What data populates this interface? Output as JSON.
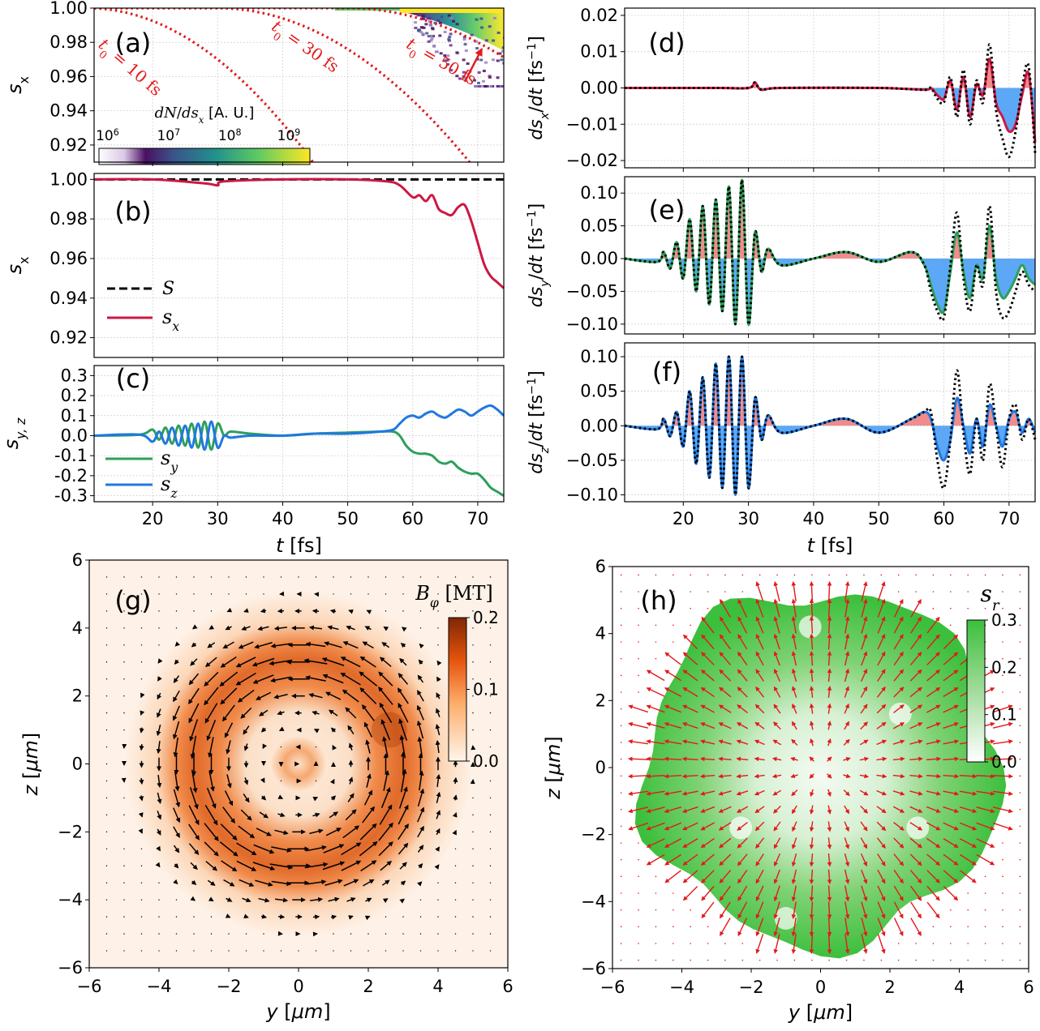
{
  "chart_data": [
    {
      "id": "a",
      "type": "heatmap",
      "panel_label": "(a)",
      "ylabel": "s_x",
      "xlim": [
        11,
        74
      ],
      "ylim": [
        0.91,
        1.0
      ],
      "yticks": [
        0.92,
        0.94,
        0.96,
        0.98,
        1.0
      ],
      "colorbar": {
        "label": "dN/ds_x [A. U.]",
        "ticks": [
          "10^6",
          "10^7",
          "10^8",
          "10^9"
        ],
        "colormap": "viridis"
      },
      "annotations": [
        {
          "label": "t_0 = 10 fs",
          "t0": 10,
          "text_at": [
            16,
            0.963
          ]
        },
        {
          "label": "t_0 = 30 fs",
          "t0": 30,
          "text_at": [
            43,
            0.975
          ]
        },
        {
          "label": "t_0 = 50 fs",
          "t0": 50,
          "text_at": [
            64,
            0.966
          ]
        }
      ],
      "curves_note": "dotted red lines s = cos^2-type decay 1 - ((t - t0)/A)^2"
    },
    {
      "id": "b",
      "type": "line",
      "panel_label": "(b)",
      "ylabel": "s_x",
      "xlim": [
        11,
        74
      ],
      "ylim": [
        0.91,
        1.003
      ],
      "yticks": [
        0.92,
        0.94,
        0.96,
        0.98,
        1.0
      ],
      "series": [
        {
          "name": "S",
          "style": "dashed",
          "color": "#000000",
          "x": [
            11,
            74
          ],
          "y": [
            1.0,
            1.0
          ]
        },
        {
          "name": "s_x",
          "color": "#cc1844",
          "x": [
            11,
            20,
            28,
            30,
            31,
            40,
            50,
            56,
            58,
            60,
            61,
            62,
            63,
            64,
            65,
            66,
            67,
            68,
            69,
            70,
            71,
            72,
            73,
            74
          ],
          "y": [
            1.0,
            1.0,
            0.998,
            0.997,
            0.999,
            1.0,
            1.0,
            0.999,
            0.997,
            0.991,
            0.992,
            0.989,
            0.992,
            0.985,
            0.983,
            0.982,
            0.986,
            0.987,
            0.979,
            0.968,
            0.957,
            0.951,
            0.948,
            0.945
          ]
        }
      ],
      "legend": "lower-left"
    },
    {
      "id": "c",
      "type": "line",
      "panel_label": "(c)",
      "ylabel": "s_y,z",
      "xlabel": "t [fs]",
      "xlim": [
        11,
        74
      ],
      "ylim": [
        -0.33,
        0.35
      ],
      "yticks": [
        -0.3,
        -0.2,
        -0.1,
        0.0,
        0.1,
        0.2,
        0.3
      ],
      "xticks": [
        20,
        30,
        40,
        50,
        60,
        70
      ],
      "series": [
        {
          "name": "s_y",
          "color": "#2ca05a",
          "x": [
            11,
            18,
            20,
            21,
            22,
            23,
            24,
            25,
            26,
            27,
            28,
            29,
            30,
            31,
            32,
            35,
            40,
            45,
            50,
            55,
            57,
            58,
            59,
            60,
            61,
            62,
            63,
            64,
            65,
            66,
            67,
            68,
            69,
            70,
            71,
            72,
            73,
            74
          ],
          "y": [
            0.0,
            0.005,
            0.03,
            -0.02,
            0.04,
            -0.04,
            0.05,
            -0.05,
            0.06,
            -0.06,
            0.07,
            -0.07,
            0.06,
            0.0,
            0.02,
            0.01,
            0.0,
            0.01,
            0.015,
            0.02,
            0.02,
            0.0,
            -0.05,
            -0.08,
            -0.09,
            -0.09,
            -0.1,
            -0.13,
            -0.14,
            -0.13,
            -0.16,
            -0.18,
            -0.19,
            -0.19,
            -0.22,
            -0.26,
            -0.28,
            -0.3
          ]
        },
        {
          "name": "s_z",
          "color": "#1f78e0",
          "x": [
            11,
            18,
            20,
            21,
            22,
            23,
            24,
            25,
            26,
            27,
            28,
            29,
            30,
            31,
            32,
            35,
            40,
            45,
            50,
            55,
            57,
            58,
            59,
            60,
            61,
            62,
            63,
            64,
            65,
            66,
            67,
            68,
            69,
            70,
            71,
            72,
            73,
            74
          ],
          "y": [
            0.0,
            0.005,
            -0.03,
            0.02,
            -0.04,
            0.04,
            -0.05,
            0.05,
            -0.06,
            0.06,
            -0.07,
            0.07,
            -0.06,
            0.0,
            -0.01,
            0.0,
            0.0,
            0.01,
            0.01,
            0.02,
            0.03,
            0.06,
            0.09,
            0.1,
            0.09,
            0.11,
            0.12,
            0.1,
            0.09,
            0.11,
            0.13,
            0.12,
            0.1,
            0.12,
            0.14,
            0.15,
            0.13,
            0.1
          ]
        }
      ],
      "legend": "lower-left"
    },
    {
      "id": "d",
      "type": "line",
      "panel_label": "(d)",
      "ylabel": "ds_x/dt [fs^-1]",
      "xlim": [
        11,
        74
      ],
      "ylim": [
        -0.022,
        0.022
      ],
      "yticks": [
        -0.02,
        -0.01,
        0.0,
        0.01,
        0.02
      ],
      "series": [
        {
          "name": "ds_x/dt (solid)",
          "color": "#cc1844",
          "fill_pos": "#f08080",
          "fill_neg": "#4a9ff5",
          "x": [
            11,
            25,
            30,
            31,
            32,
            35,
            50,
            57,
            58,
            59,
            60,
            61,
            62,
            63,
            64,
            65,
            66,
            67,
            68,
            69,
            70,
            71,
            72,
            73,
            74
          ],
          "y": [
            0.0,
            0.0,
            0.0,
            0.0015,
            -0.0005,
            0.0,
            0.0,
            -0.0005,
            0.0,
            -0.002,
            -0.003,
            0.002,
            -0.006,
            0.003,
            -0.008,
            0.001,
            -0.002,
            0.008,
            -0.004,
            -0.008,
            -0.012,
            -0.01,
            -0.002,
            0.004,
            -0.015
          ]
        },
        {
          "name": "model (dotted)",
          "color": "#000000",
          "style": "dotted",
          "x": [
            11,
            25,
            30,
            31,
            32,
            35,
            50,
            57,
            58,
            59,
            60,
            61,
            62,
            63,
            64,
            65,
            66,
            67,
            68,
            69,
            70,
            71,
            72,
            73,
            74
          ],
          "y": [
            0.0,
            0.0,
            0.0,
            0.0015,
            -0.0005,
            0.0,
            0.0,
            -0.0005,
            0.0,
            -0.003,
            -0.004,
            0.003,
            -0.008,
            0.005,
            -0.01,
            0.002,
            -0.004,
            0.012,
            -0.006,
            -0.014,
            -0.019,
            -0.012,
            0.0,
            0.006,
            -0.018
          ]
        }
      ]
    },
    {
      "id": "e",
      "type": "line",
      "panel_label": "(e)",
      "ylabel": "ds_y/dt [fs^-1]",
      "xlim": [
        11,
        74
      ],
      "ylim": [
        -0.115,
        0.125
      ],
      "yticks": [
        -0.1,
        -0.05,
        0.0,
        0.05,
        0.1
      ],
      "series": [
        {
          "name": "ds_y/dt (solid)",
          "color": "#2ca05a",
          "fill_pos": "#f08080",
          "fill_neg": "#4a9ff5",
          "x": [
            11,
            16,
            17,
            18,
            19,
            20,
            21,
            22,
            23,
            24,
            25,
            26,
            27,
            28,
            29,
            30,
            31,
            32,
            33,
            35,
            40,
            45,
            50,
            55,
            57,
            58,
            59,
            60,
            61,
            62,
            63,
            64,
            65,
            66,
            67,
            68,
            69,
            70,
            71,
            72,
            73,
            74
          ],
          "y": [
            0.0,
            -0.005,
            0.01,
            -0.015,
            0.025,
            -0.03,
            0.06,
            -0.05,
            0.08,
            -0.07,
            0.09,
            -0.08,
            0.11,
            -0.1,
            0.12,
            -0.1,
            0.04,
            -0.02,
            0.015,
            -0.01,
            0.0,
            0.01,
            -0.005,
            0.01,
            -0.01,
            -0.04,
            -0.07,
            -0.08,
            -0.02,
            0.04,
            -0.02,
            -0.06,
            -0.01,
            -0.03,
            0.05,
            -0.03,
            -0.06,
            -0.05,
            -0.03,
            -0.01,
            -0.03,
            -0.04
          ]
        },
        {
          "name": "model (dotted)",
          "color": "#000000",
          "style": "dotted",
          "x": [
            11,
            16,
            17,
            18,
            19,
            20,
            21,
            22,
            23,
            24,
            25,
            26,
            27,
            28,
            29,
            30,
            31,
            32,
            33,
            35,
            40,
            45,
            50,
            55,
            57,
            58,
            59,
            60,
            61,
            62,
            63,
            64,
            65,
            66,
            67,
            68,
            69,
            70,
            71,
            72,
            73,
            74
          ],
          "y": [
            0.0,
            -0.005,
            0.01,
            -0.015,
            0.025,
            -0.03,
            0.06,
            -0.05,
            0.08,
            -0.07,
            0.09,
            -0.08,
            0.11,
            -0.1,
            0.12,
            -0.1,
            0.04,
            -0.02,
            0.015,
            -0.01,
            0.0,
            0.01,
            -0.005,
            0.01,
            -0.01,
            -0.05,
            -0.08,
            -0.09,
            -0.01,
            0.07,
            -0.03,
            -0.08,
            -0.01,
            -0.04,
            0.08,
            -0.05,
            -0.09,
            -0.08,
            -0.05,
            -0.02,
            -0.04,
            -0.05
          ]
        }
      ]
    },
    {
      "id": "f",
      "type": "line",
      "panel_label": "(f)",
      "ylabel": "ds_z/dt [fs^-1]",
      "xlabel": "t [fs]",
      "xlim": [
        11,
        74
      ],
      "ylim": [
        -0.11,
        0.12
      ],
      "yticks": [
        -0.1,
        -0.05,
        0.0,
        0.05,
        0.1
      ],
      "xticks": [
        20,
        30,
        40,
        50,
        60,
        70
      ],
      "series": [
        {
          "name": "ds_z/dt (solid)",
          "color": "#1f78e0",
          "fill_pos": "#f08080",
          "fill_neg": "#4a9ff5",
          "x": [
            11,
            16,
            17,
            18,
            19,
            20,
            21,
            22,
            23,
            24,
            25,
            26,
            27,
            28,
            29,
            30,
            31,
            32,
            33,
            35,
            40,
            45,
            50,
            55,
            57,
            58,
            59,
            60,
            61,
            62,
            63,
            64,
            65,
            66,
            67,
            68,
            69,
            70,
            71,
            72,
            73,
            74
          ],
          "y": [
            0.0,
            -0.005,
            0.01,
            -0.015,
            0.02,
            -0.03,
            0.05,
            -0.055,
            0.07,
            -0.075,
            0.09,
            -0.09,
            0.1,
            -0.1,
            0.1,
            -0.09,
            0.04,
            -0.02,
            0.015,
            -0.01,
            0.0,
            0.01,
            -0.01,
            0.01,
            0.02,
            0.01,
            -0.03,
            -0.05,
            -0.02,
            0.04,
            0.0,
            -0.04,
            0.01,
            -0.03,
            0.03,
            0.0,
            -0.03,
            0.01,
            0.02,
            -0.01,
            0.01,
            -0.01
          ]
        },
        {
          "name": "model (dotted)",
          "color": "#000000",
          "style": "dotted",
          "x": [
            11,
            16,
            17,
            18,
            19,
            20,
            21,
            22,
            23,
            24,
            25,
            26,
            27,
            28,
            29,
            30,
            31,
            32,
            33,
            35,
            40,
            45,
            50,
            55,
            57,
            58,
            59,
            60,
            61,
            62,
            63,
            64,
            65,
            66,
            67,
            68,
            69,
            70,
            71,
            72,
            73,
            74
          ],
          "y": [
            0.0,
            -0.005,
            0.01,
            -0.015,
            0.02,
            -0.03,
            0.05,
            -0.055,
            0.07,
            -0.075,
            0.09,
            -0.09,
            0.1,
            -0.1,
            0.1,
            -0.09,
            0.04,
            -0.02,
            0.015,
            -0.01,
            0.0,
            0.01,
            -0.01,
            0.01,
            0.02,
            0.02,
            -0.05,
            -0.09,
            -0.02,
            0.08,
            -0.01,
            -0.07,
            0.01,
            -0.05,
            0.06,
            0.0,
            -0.06,
            0.01,
            0.03,
            -0.02,
            0.01,
            -0.02
          ]
        }
      ]
    },
    {
      "id": "g",
      "type": "heatmap",
      "panel_label": "(g)",
      "xlabel": "y [μm]",
      "ylabel": "z [μm]",
      "xlim": [
        -6,
        6
      ],
      "ylim": [
        -6,
        6
      ],
      "xticks": [
        -6,
        -4,
        -2,
        0,
        2,
        4,
        6
      ],
      "yticks": [
        -6,
        -4,
        -2,
        0,
        2,
        4,
        6
      ],
      "colorbar": {
        "label": "B_φ [MT]",
        "range": [
          0.0,
          0.2
        ],
        "ticks": [
          "0.0",
          "0.1",
          "0.2"
        ],
        "colormap": "Oranges"
      },
      "field": "annular ring of B_phi peaking near r = 3 μm with azimuthal (counter-clockwise) quiver arrows"
    },
    {
      "id": "h",
      "type": "scatter",
      "panel_label": "(h)",
      "xlabel": "y [μm]",
      "ylabel": "z [μm]",
      "xlim": [
        -6,
        6
      ],
      "ylim": [
        -6,
        6
      ],
      "xticks": [
        -6,
        -4,
        -2,
        0,
        2,
        4,
        6
      ],
      "yticks": [
        -6,
        -4,
        -2,
        0,
        2,
        4,
        6
      ],
      "colorbar": {
        "label": "s_r",
        "range": [
          0.0,
          0.3
        ],
        "ticks": [
          "0.0",
          "0.1",
          "0.2",
          "0.3"
        ],
        "colormap": "Greens"
      },
      "field": "disk of particles radius ~5.5 μm, s_r increasing outward, red radial quiver arrows"
    }
  ],
  "colors": {
    "red": "#e31a1c",
    "crimson": "#cc1844",
    "green": "#2ca05a",
    "blue": "#1f78e0",
    "fill_red": "#f08080",
    "fill_blue": "#4a9ff5"
  }
}
